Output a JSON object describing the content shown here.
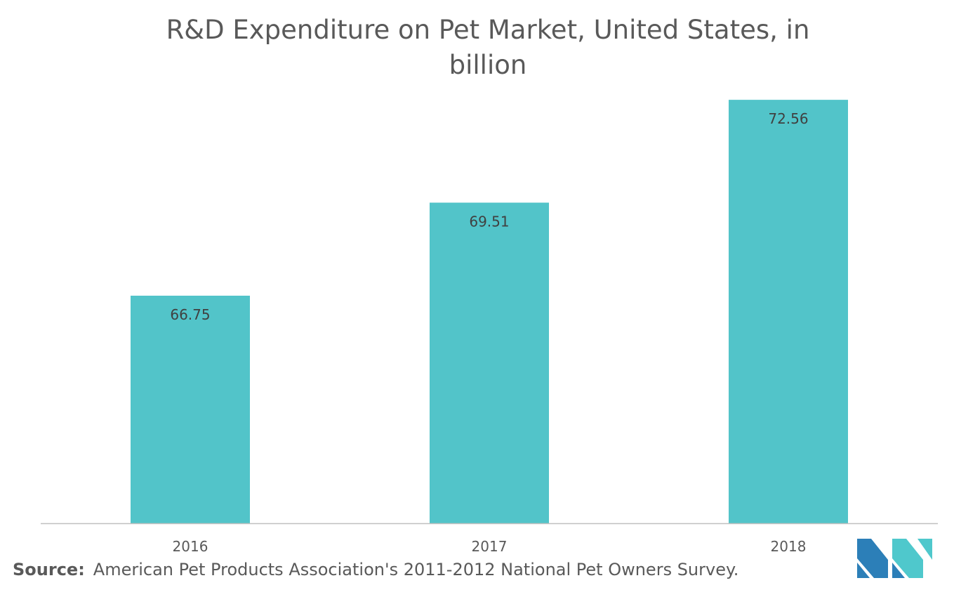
{
  "chart_data": {
    "type": "bar",
    "title": "R&D Expenditure on Pet Market, United States, in billion",
    "categories": [
      "2016",
      "2017",
      "2018"
    ],
    "values": [
      66.75,
      69.51,
      72.56
    ],
    "data_labels": [
      "66.75",
      "69.51",
      "72.56"
    ],
    "xlabel": "",
    "ylabel": "",
    "ylim": [
      60,
      74
    ],
    "grid": false,
    "legend": "none"
  },
  "colors": {
    "bar": "#52c4c9",
    "axis": "#bfbfbf",
    "text": "#595959",
    "label": "#404040",
    "logo_dark": "#2c7fb8",
    "logo_light": "#4fc8cc"
  },
  "source": {
    "label": "Source:",
    "text": "American Pet Products Association's 2011-2012 National Pet Owners Survey."
  },
  "logo": {
    "icon": "mordor-logo-icon"
  }
}
